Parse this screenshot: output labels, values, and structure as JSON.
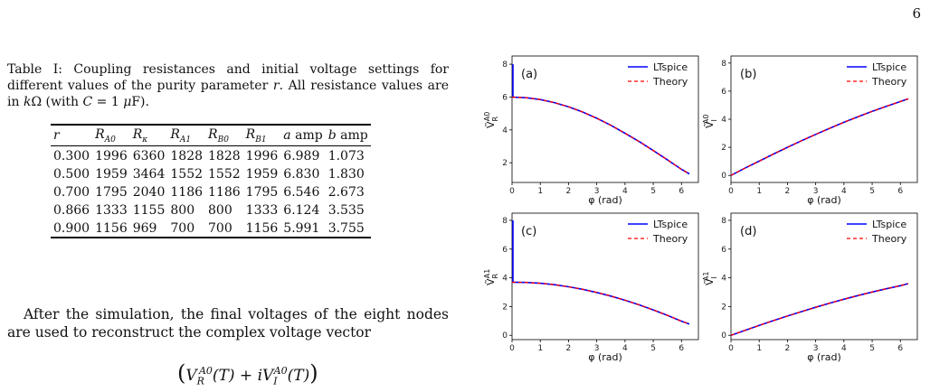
{
  "page_number": "6",
  "caption": "Table I: Coupling resistances and initial voltage settings for different values of the purity parameter r. All resistance values are in kΩ (with C = 1 μF).",
  "table": {
    "headers": [
      "r",
      "RA0",
      "Rκ",
      "RA1",
      "RB0",
      "RB1",
      "a amp",
      "b amp"
    ],
    "rows": [
      [
        "0.300",
        "1996",
        "6360",
        "1828",
        "1828",
        "1996",
        "6.989",
        "1.073"
      ],
      [
        "0.500",
        "1959",
        "3464",
        "1552",
        "1552",
        "1959",
        "6.830",
        "1.830"
      ],
      [
        "0.700",
        "1795",
        "2040",
        "1186",
        "1186",
        "1795",
        "6.546",
        "2.673"
      ],
      [
        "0.866",
        "1333",
        "1155",
        "800",
        "800",
        "1333",
        "6.124",
        "3.535"
      ],
      [
        "0.900",
        "1156",
        "969",
        "700",
        "700",
        "1156",
        "5.991",
        "3.755"
      ]
    ]
  },
  "paragraph": "After the simulation, the final voltages of the eight nodes are used to reconstruct the complex voltage vector",
  "equation": "(V_R^A0(T) + iV_I^A0(T))",
  "chart_data": [
    {
      "type": "line",
      "panel": "(a)",
      "xlabel": "φ (rad)",
      "ylabel": "Ṽ_R^A0",
      "xlim": [
        0,
        6.6
      ],
      "ylim": [
        0.8,
        8.5
      ],
      "x_ticks": [
        0,
        1,
        2,
        3,
        4,
        5,
        6
      ],
      "y_ticks": [
        2,
        4,
        6,
        8
      ],
      "series": [
        {
          "name": "LTspice",
          "color": "#0000ff",
          "style": "solid"
        },
        {
          "name": "Theory",
          "color": "#ff0000",
          "style": "dashed"
        }
      ],
      "x": [
        0,
        0.5,
        1,
        1.5,
        2,
        2.5,
        3,
        3.5,
        4,
        4.5,
        5,
        5.5,
        6,
        6.28
      ],
      "values": [
        6.0,
        5.96,
        5.85,
        5.66,
        5.41,
        5.09,
        4.71,
        4.28,
        3.8,
        3.29,
        2.74,
        2.18,
        1.6,
        1.32
      ],
      "initial_spike": [
        6.0,
        8.0
      ]
    },
    {
      "type": "line",
      "panel": "(b)",
      "xlabel": "φ (rad)",
      "ylabel": "Ṽ_I^A0",
      "xlim": [
        0,
        6.6
      ],
      "ylim": [
        -0.5,
        8.5
      ],
      "x_ticks": [
        0,
        1,
        2,
        3,
        4,
        5,
        6
      ],
      "y_ticks": [
        0,
        2,
        4,
        6,
        8
      ],
      "series": [
        {
          "name": "LTspice",
          "color": "#0000ff",
          "style": "solid"
        },
        {
          "name": "Theory",
          "color": "#ff0000",
          "style": "dashed"
        }
      ],
      "x": [
        0,
        0.5,
        1,
        1.5,
        2,
        2.5,
        3,
        3.5,
        4,
        4.5,
        5,
        5.5,
        6,
        6.28
      ],
      "values": [
        0,
        0.52,
        1.02,
        1.52,
        2.0,
        2.47,
        2.92,
        3.36,
        3.78,
        4.18,
        4.56,
        4.92,
        5.26,
        5.45
      ]
    },
    {
      "type": "line",
      "panel": "(c)",
      "xlabel": "φ (rad)",
      "ylabel": "Ṽ_R^A1",
      "xlim": [
        0,
        6.6
      ],
      "ylim": [
        -0.3,
        8.5
      ],
      "x_ticks": [
        0,
        1,
        2,
        3,
        4,
        5,
        6
      ],
      "y_ticks": [
        0,
        2,
        4,
        6,
        8
      ],
      "series": [
        {
          "name": "LTspice",
          "color": "#0000ff",
          "style": "solid"
        },
        {
          "name": "Theory",
          "color": "#ff0000",
          "style": "dashed"
        }
      ],
      "x": [
        0,
        0.5,
        1,
        1.5,
        2,
        2.5,
        3,
        3.5,
        4,
        4.5,
        5,
        5.5,
        6,
        6.28
      ],
      "values": [
        3.7,
        3.68,
        3.62,
        3.52,
        3.38,
        3.2,
        2.98,
        2.73,
        2.44,
        2.12,
        1.77,
        1.39,
        0.98,
        0.78
      ],
      "initial_spike": [
        3.7,
        8.0
      ]
    },
    {
      "type": "line",
      "panel": "(d)",
      "xlabel": "φ (rad)",
      "ylabel": "Ṽ_I^A1",
      "xlim": [
        0,
        6.6
      ],
      "ylim": [
        -0.3,
        8.5
      ],
      "x_ticks": [
        0,
        1,
        2,
        3,
        4,
        5,
        6
      ],
      "y_ticks": [
        0,
        2,
        4,
        6,
        8
      ],
      "series": [
        {
          "name": "LTspice",
          "color": "#0000ff",
          "style": "solid"
        },
        {
          "name": "Theory",
          "color": "#ff0000",
          "style": "dashed"
        }
      ],
      "x": [
        0,
        0.5,
        1,
        1.5,
        2,
        2.5,
        3,
        3.5,
        4,
        4.5,
        5,
        5.5,
        6,
        6.28
      ],
      "values": [
        0,
        0.35,
        0.69,
        1.02,
        1.34,
        1.65,
        1.95,
        2.24,
        2.51,
        2.77,
        3.01,
        3.24,
        3.45,
        3.6
      ]
    }
  ]
}
